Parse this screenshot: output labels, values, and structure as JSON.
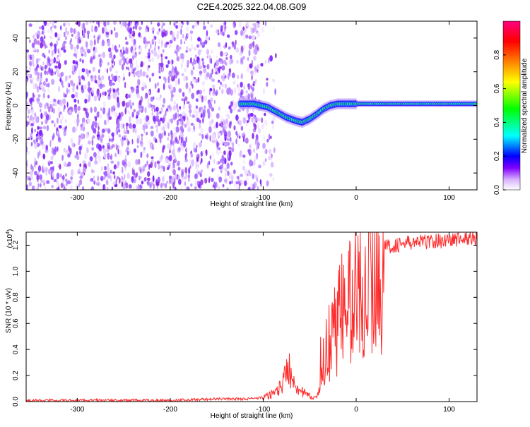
{
  "title": "C2E4.2025.322.04.08.G09",
  "colors": {
    "spectrum_low": "#8a2be2",
    "spectrum_core": "#ff0000",
    "snr_line": "#ff2a2a",
    "axis": "#000000"
  },
  "chart_data": [
    {
      "type": "heatmap",
      "xlabel": "Height of straight line (km)",
      "ylabel": "Frequency (Hz)",
      "xlim": [
        -355,
        130
      ],
      "ylim": [
        -50,
        50
      ],
      "x_ticks": [
        -300,
        -200,
        -100,
        0,
        100
      ],
      "y_ticks": [
        -40,
        -20,
        0,
        20,
        40
      ],
      "colorbar": {
        "label": "Normalized spectral amplitude",
        "range": [
          0,
          1
        ],
        "ticks": [
          "0.0",
          "0.2",
          "0.4",
          "0.6",
          "0.8"
        ],
        "tick_values": [
          0.0,
          0.2,
          0.4,
          0.6,
          0.8
        ],
        "colors": [
          "#ffffff",
          "#c080ff",
          "#7f00ff",
          "#0000ff",
          "#00ffff",
          "#00ff00",
          "#ffff00",
          "#ff8000",
          "#ff0000",
          "#ff0080"
        ]
      },
      "noise_region_x": [
        -355,
        -105
      ],
      "signal_trace": {
        "x": [
          -125,
          -110,
          -95,
          -85,
          -75,
          -65,
          -58,
          -50,
          -42,
          -35,
          -28,
          -20,
          -10,
          0,
          20,
          50,
          80,
          100,
          130
        ],
        "y": [
          1,
          1,
          -1,
          -4,
          -7,
          -9,
          -10,
          -8,
          -5,
          -2,
          0,
          1,
          1,
          1,
          1,
          1,
          1,
          1,
          1
        ]
      }
    },
    {
      "type": "line",
      "xlabel": "Height of straight line (km)",
      "ylabel": "SNR (10 * v/v)",
      "y_multiplier": "(x10",
      "y_multiplier_exp": "4",
      "xlim": [
        -355,
        130
      ],
      "ylim": [
        0,
        1.3
      ],
      "x_ticks": [
        -300,
        -200,
        -100,
        0,
        100
      ],
      "y_ticks": [
        "0.0",
        "0.2",
        "0.4",
        "0.6",
        "0.8",
        "1.0",
        "1.2"
      ],
      "y_tick_values": [
        0.0,
        0.2,
        0.4,
        0.6,
        0.8,
        1.0,
        1.2
      ],
      "series": [
        {
          "x": [
            -355,
            -300,
            -250,
            -200,
            -150,
            -120,
            -100,
            -90,
            -80,
            -72,
            -68,
            -60,
            -50,
            -42,
            -38,
            -35,
            -30,
            -25,
            -20,
            -15,
            -10,
            0,
            10,
            20,
            30,
            40,
            60,
            80,
            100,
            115,
            130
          ],
          "y": [
            0.01,
            0.01,
            0.01,
            0.01,
            0.02,
            0.02,
            0.03,
            0.06,
            0.12,
            0.28,
            0.18,
            0.08,
            0.04,
            0.03,
            0.1,
            0.3,
            0.45,
            0.55,
            0.62,
            0.7,
            0.75,
            0.82,
            0.95,
            1.1,
            1.18,
            1.2,
            1.22,
            1.23,
            1.24,
            1.25,
            1.26
          ]
        }
      ]
    }
  ]
}
